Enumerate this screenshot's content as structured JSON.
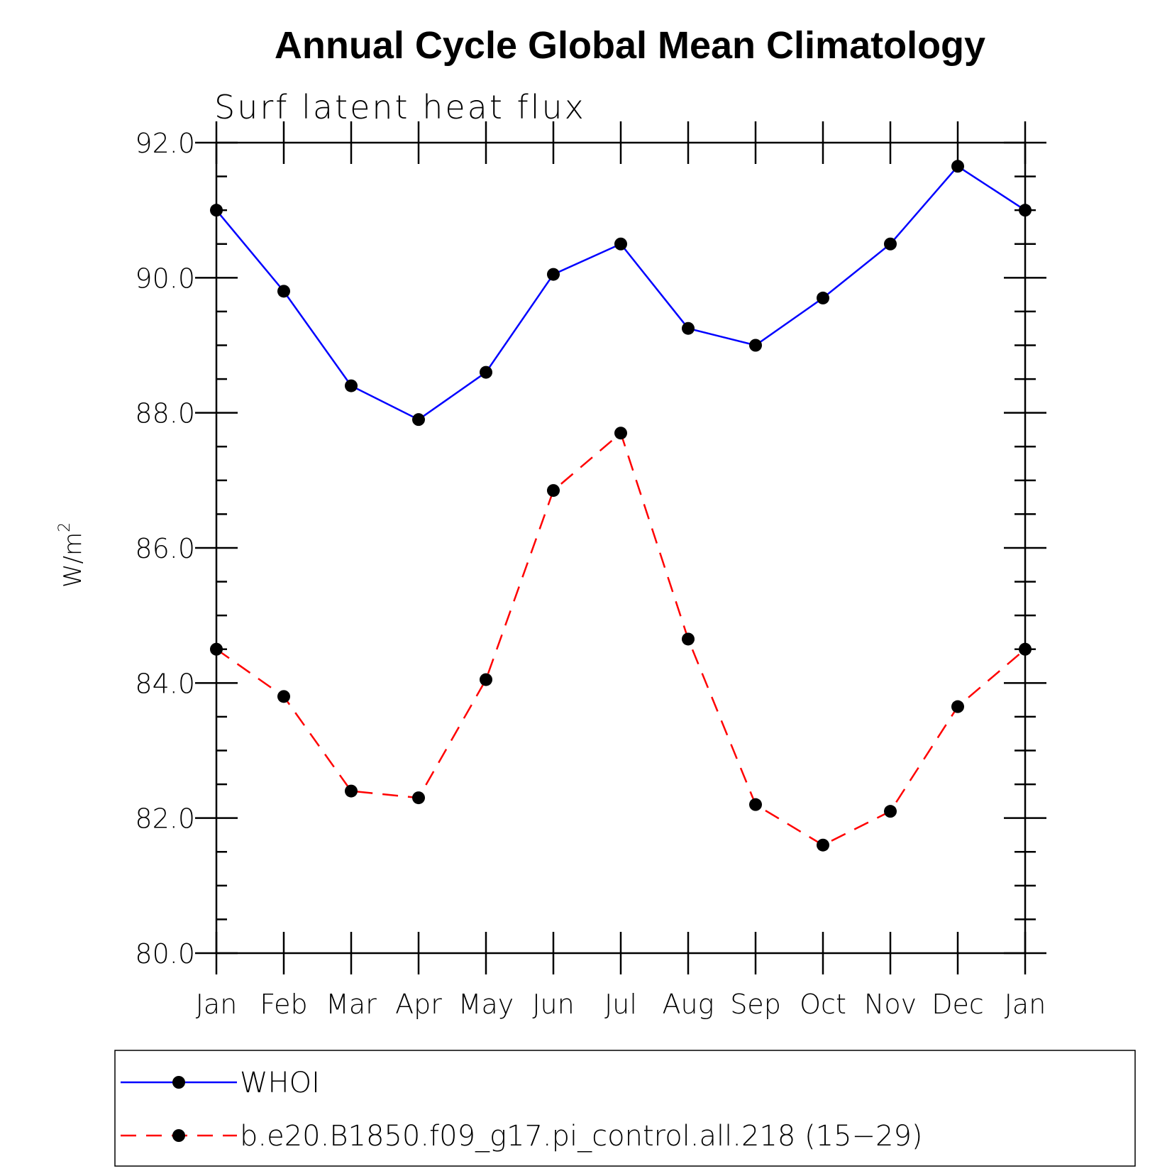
{
  "chart_data": {
    "type": "line",
    "title": "Annual Cycle Global Mean Climatology",
    "subtitle": "Surf latent heat flux",
    "ylabel": "W/m",
    "ylabel_superscript": "2",
    "xlabel": "",
    "categories": [
      "Jan",
      "Feb",
      "Mar",
      "Apr",
      "May",
      "Jun",
      "Jul",
      "Aug",
      "Sep",
      "Oct",
      "Nov",
      "Dec",
      "Jan"
    ],
    "yticks": [
      "80.0",
      "82.0",
      "84.0",
      "86.0",
      "88.0",
      "90.0",
      "92.0"
    ],
    "ylim": [
      80,
      92
    ],
    "grid": false,
    "legend_position": "bottom",
    "series": [
      {
        "name": "WHOI",
        "color": "#0000ff",
        "line_style": "solid",
        "marker": "filled-circle",
        "values": [
          91.0,
          89.8,
          88.4,
          87.9,
          88.6,
          90.05,
          90.5,
          89.25,
          89.0,
          89.7,
          90.5,
          91.65,
          91.0
        ]
      },
      {
        "name": "b.e20.B1850.f09_g17.pi_control.all.218 (15−29)",
        "color": "#ff0000",
        "line_style": "dashed",
        "marker": "filled-circle",
        "values": [
          84.5,
          83.8,
          82.4,
          82.3,
          84.05,
          86.85,
          87.7,
          84.65,
          82.2,
          81.6,
          82.1,
          83.65,
          84.5
        ]
      }
    ]
  }
}
